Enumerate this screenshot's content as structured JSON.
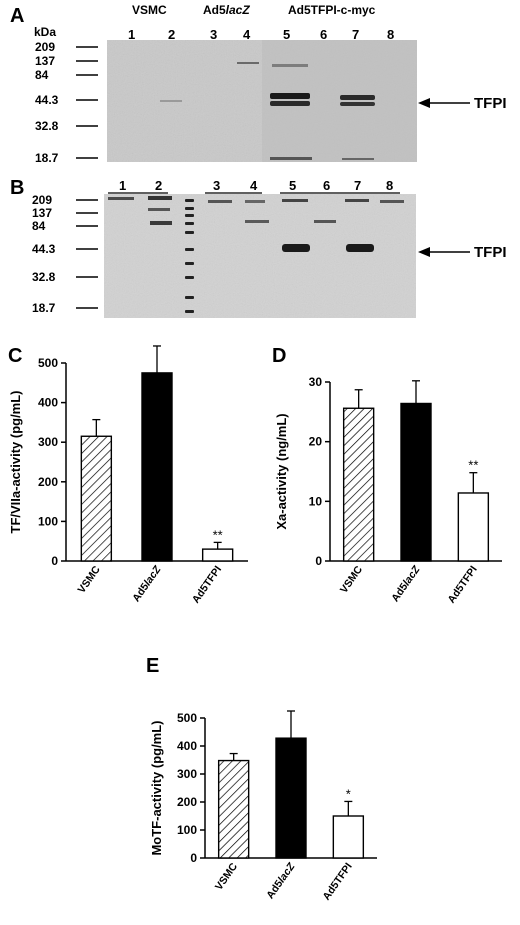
{
  "figure": {
    "panel_letters": [
      "A",
      "B",
      "C",
      "D",
      "E"
    ],
    "kda_label": "kDa",
    "groups": [
      {
        "text": "VSMC"
      },
      {
        "text": "Ad5",
        "italic": "lacZ"
      },
      {
        "text": "Ad5TFPI-c-myc"
      }
    ],
    "lanes_a": [
      "1",
      "2",
      "3",
      "4",
      "5",
      "6",
      "7",
      "8"
    ],
    "lanes_b": [
      "1",
      "2",
      "3",
      "4",
      "5",
      "6",
      "7",
      "8"
    ],
    "markers_a": [
      "209",
      "137",
      "84",
      "44.3",
      "32.8",
      "18.7"
    ],
    "markers_b": [
      "209",
      "137",
      "84",
      "44.3",
      "32.8",
      "18.7"
    ],
    "band_label_a": "TFPI",
    "band_label_b": "TFPI",
    "blot_colors": {
      "gel_a": "#c9c9c9",
      "gel_b": "#d2d2d2",
      "band": "#1a1a1a"
    }
  },
  "chart_data": [
    {
      "type": "bar",
      "panel": "C",
      "categories": [
        "VSMC",
        "Ad5lacZ",
        "Ad5TFPI"
      ],
      "values": [
        315,
        475,
        30
      ],
      "errors": [
        42,
        68,
        17
      ],
      "fills": [
        "hatched",
        "black",
        "white"
      ],
      "significance": [
        "",
        "",
        "**"
      ],
      "ylabel": "TF/VIIa-activity (pg/mL)",
      "ylim": [
        0,
        500
      ],
      "yticks": [
        "0",
        "100",
        "200",
        "300",
        "400",
        "500"
      ]
    },
    {
      "type": "bar",
      "panel": "D",
      "categories": [
        "VSMC",
        "Ad5lacZ",
        "Ad5TFPI"
      ],
      "values": [
        25.6,
        26.4,
        11.4
      ],
      "errors": [
        3.1,
        3.8,
        3.4
      ],
      "fills": [
        "hatched",
        "black",
        "white"
      ],
      "significance": [
        "",
        "",
        "**"
      ],
      "ylabel": "Xa-activity (ng/mL)",
      "ylim": [
        0,
        30
      ],
      "yticks": [
        "0",
        "10",
        "20",
        "30"
      ]
    },
    {
      "type": "bar",
      "panel": "E",
      "categories": [
        "VSMC",
        "Ad5lacZ",
        "Ad5TFPI"
      ],
      "values": [
        348,
        428,
        150
      ],
      "errors": [
        25,
        97,
        52
      ],
      "fills": [
        "hatched",
        "black",
        "white"
      ],
      "significance": [
        "",
        "",
        "*"
      ],
      "ylabel": "MoTF-activity (pg/mL)",
      "ylim": [
        0,
        500
      ],
      "yticks": [
        "0",
        "100",
        "200",
        "300",
        "400",
        "500"
      ]
    }
  ]
}
